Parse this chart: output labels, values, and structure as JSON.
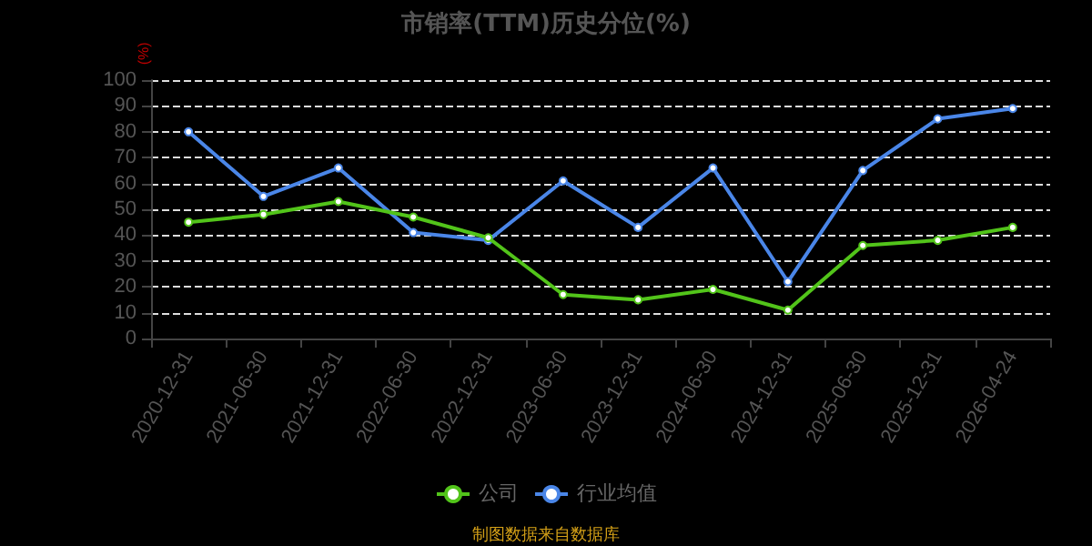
{
  "chart_data": {
    "type": "line",
    "title": "市销率(TTM)历史分位(%)",
    "ylabel": "(%)",
    "categories": [
      "2020-12-31",
      "2021-06-30",
      "2021-12-31",
      "2022-06-30",
      "2022-12-31",
      "2023-06-30",
      "2023-12-31",
      "2024-06-30",
      "2024-12-31",
      "2025-06-30",
      "2025-12-31",
      "2026-04-24"
    ],
    "series": [
      {
        "name": "公司",
        "color": "#52c41a",
        "values": [
          45,
          48,
          53,
          47,
          39,
          17,
          15,
          19,
          11,
          36,
          38,
          43
        ]
      },
      {
        "name": "行业均值",
        "color": "#4a86e8",
        "values": [
          80,
          55,
          66,
          41,
          38,
          61,
          43,
          66,
          22,
          65,
          85,
          89
        ]
      }
    ],
    "ylim": [
      0,
      100
    ],
    "yticks": [
      0,
      10,
      20,
      30,
      40,
      50,
      60,
      70,
      80,
      90,
      100
    ],
    "grid": "y",
    "legend": "bottom",
    "marker": "circle",
    "line_style": "solid",
    "annotations": [
      "制图数据来自数据库"
    ]
  }
}
